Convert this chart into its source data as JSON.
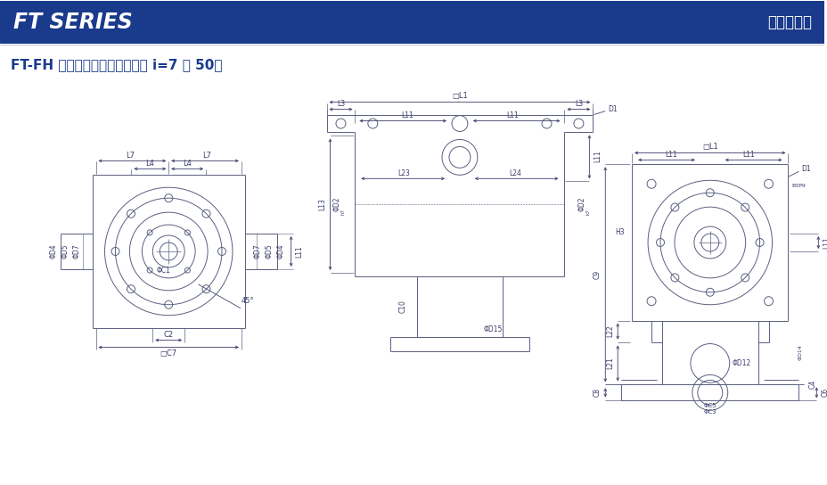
{
  "title_left": "FT SERIES",
  "title_right": "行星减速机",
  "subtitle": "FT-FH 系列尺寸（双级，减速比 i=7 ～ 50）",
  "header_bg": "#1a3a8c",
  "header_text_color": "#ffffff",
  "line_color": "#5a6080",
  "dim_color": "#3a3a6a",
  "drawing_bg": "#ffffff"
}
